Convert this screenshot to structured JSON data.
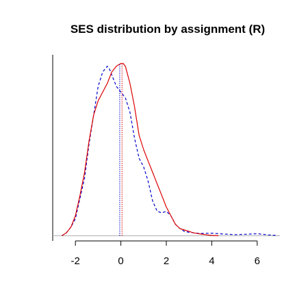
{
  "chart_data": {
    "type": "line",
    "title": "SES distribution by assignment (R)",
    "xlabel": "",
    "ylabel": "",
    "xlim": [
      -3,
      7
    ],
    "ylim": [
      -0.018,
      0.63
    ],
    "x_ticks": [
      -2,
      0,
      2,
      4,
      6
    ],
    "x_tick_labels": [
      "-2",
      "0",
      "2",
      "4",
      "6"
    ],
    "y_axis_ticks_shown": false,
    "baseline": 0,
    "grid": false,
    "legend": "none",
    "series": [
      {
        "color": "#0000cc",
        "line_style": "dashed",
        "x": [
          -2.6,
          -2.4,
          -2.2,
          -2.0,
          -1.8,
          -1.6,
          -1.4,
          -1.2,
          -1.0,
          -0.8,
          -0.6,
          -0.5,
          -0.4,
          -0.2,
          0.0,
          0.2,
          0.4,
          0.6,
          0.8,
          1.0,
          1.2,
          1.4,
          1.6,
          1.8,
          2.0,
          2.2,
          2.4,
          2.6,
          2.8,
          3.0,
          3.2,
          3.5,
          4.0,
          4.5,
          5.0,
          5.5,
          6.0,
          6.5,
          6.9
        ],
        "y": [
          0.0,
          0.01,
          0.03,
          0.06,
          0.13,
          0.2,
          0.32,
          0.42,
          0.52,
          0.57,
          0.59,
          0.58,
          0.56,
          0.52,
          0.5,
          0.48,
          0.43,
          0.34,
          0.27,
          0.24,
          0.19,
          0.12,
          0.085,
          0.08,
          0.085,
          0.07,
          0.04,
          0.025,
          0.015,
          0.012,
          0.01,
          0.008,
          0.009,
          0.006,
          0.004,
          0.005,
          0.007,
          0.003,
          0.001
        ]
      },
      {
        "color": "#dd0000",
        "line_style": "solid",
        "x": [
          -2.6,
          -2.4,
          -2.2,
          -2.0,
          -1.8,
          -1.6,
          -1.4,
          -1.2,
          -1.0,
          -0.8,
          -0.6,
          -0.4,
          -0.2,
          0.0,
          0.1,
          0.2,
          0.4,
          0.6,
          0.8,
          1.0,
          1.2,
          1.4,
          1.6,
          1.8,
          2.0,
          2.2,
          2.4,
          2.6,
          2.8,
          3.0,
          3.2,
          3.5,
          3.8,
          4.0,
          4.3
        ],
        "y": [
          0.0,
          0.01,
          0.03,
          0.07,
          0.14,
          0.22,
          0.33,
          0.42,
          0.47,
          0.5,
          0.53,
          0.57,
          0.59,
          0.6,
          0.6,
          0.59,
          0.53,
          0.45,
          0.35,
          0.3,
          0.26,
          0.22,
          0.18,
          0.14,
          0.1,
          0.07,
          0.04,
          0.025,
          0.02,
          0.015,
          0.01,
          0.006,
          0.003,
          0.001,
          0.0
        ]
      }
    ],
    "reference_lines": [
      {
        "x": -0.05,
        "color": "#0000cc",
        "line_style": "dotted"
      },
      {
        "x": 0.05,
        "color": "#dd0000",
        "line_style": "dotted"
      }
    ]
  }
}
